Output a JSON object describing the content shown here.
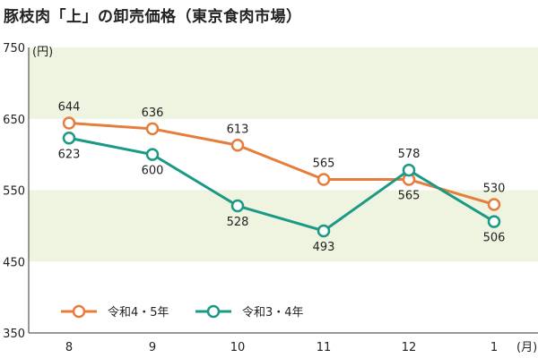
{
  "title": "豚枝肉「上」の卸売価格（東京食肉市場）",
  "colors": {
    "series_a": "#e67d3c",
    "series_b": "#1a9985",
    "band": "#eef4e0"
  },
  "chart_data": {
    "type": "line",
    "title": "豚枝肉「上」の卸売価格（東京食肉市場）",
    "ylabel": "(円)",
    "xlabel": "(月)",
    "categories": [
      "8",
      "9",
      "10",
      "11",
      "12",
      "1"
    ],
    "ylim": [
      350,
      750
    ],
    "yticks": [
      "750",
      "650",
      "550",
      "450",
      "350"
    ],
    "series": [
      {
        "name": "令和4・5年",
        "values": [
          644,
          636,
          613,
          565,
          565,
          530
        ]
      },
      {
        "name": "令和3・4年",
        "values": [
          623,
          600,
          528,
          493,
          578,
          506
        ]
      }
    ],
    "grid": false,
    "legend": "bottom-left"
  }
}
